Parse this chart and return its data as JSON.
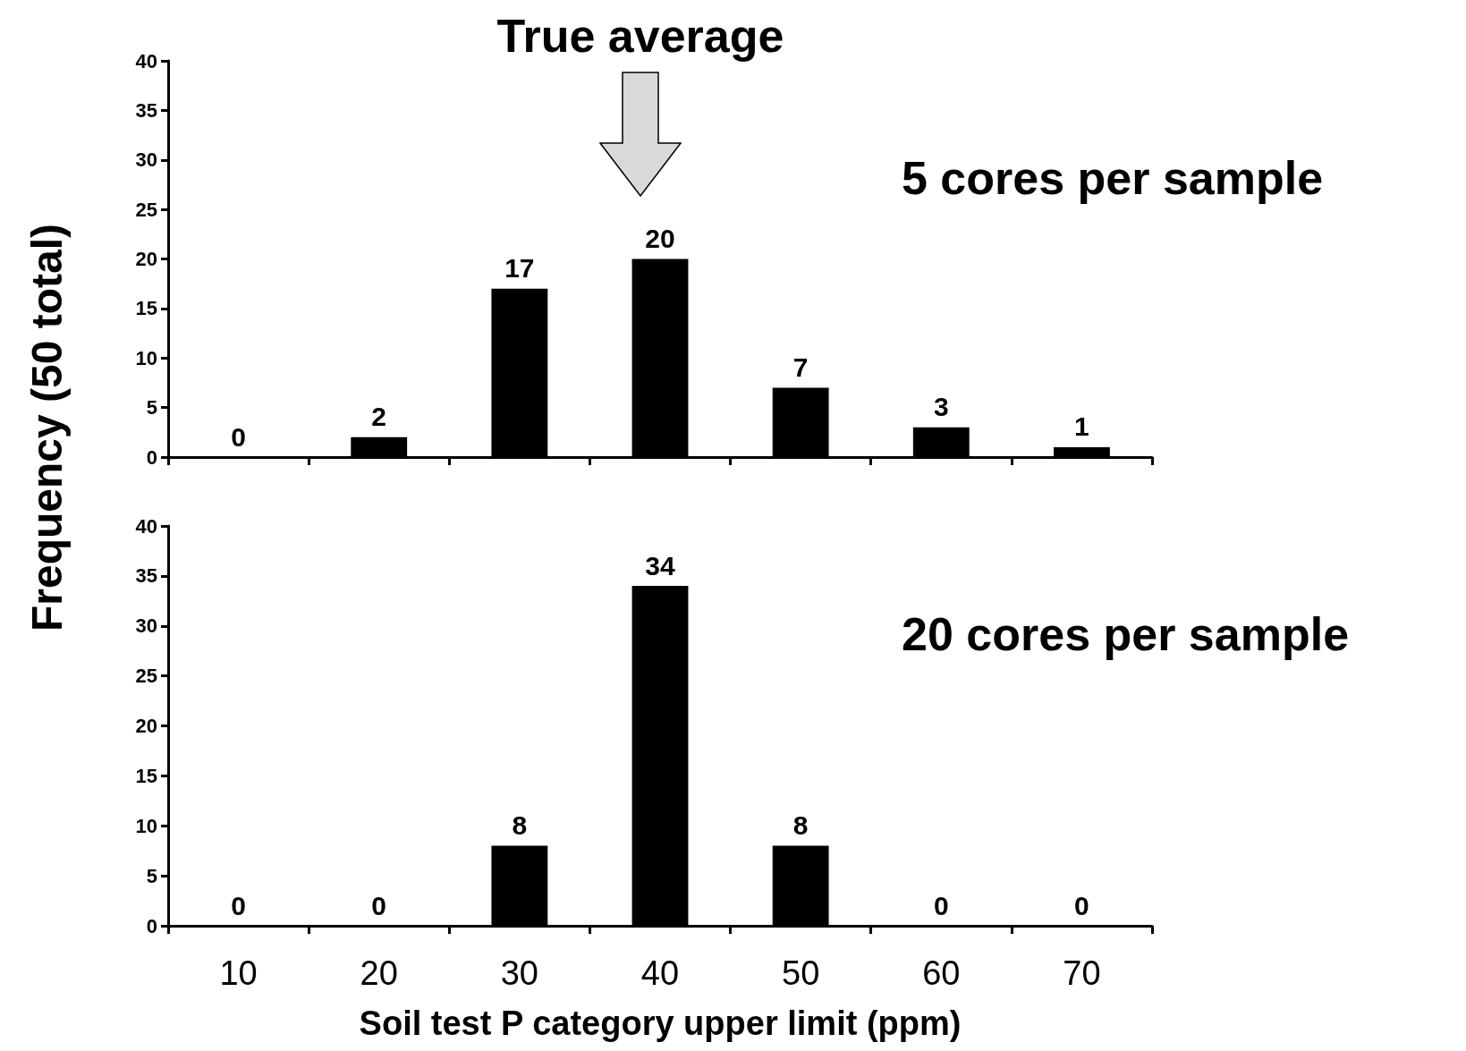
{
  "chart_data": [
    {
      "type": "bar",
      "ylabel": "Frequency (50 total)",
      "categories": [
        "10",
        "20",
        "30",
        "40",
        "50",
        "60",
        "70"
      ],
      "values": [
        0,
        2,
        17,
        20,
        7,
        3,
        1
      ],
      "color": "#000000",
      "ylim": [
        0,
        40
      ],
      "yticks": [
        0,
        5,
        10,
        15,
        20,
        25,
        30,
        35,
        40
      ],
      "data_labels": true,
      "tick_labels": "y",
      "title": "True average",
      "annotations": [
        "5 cores per sample"
      ]
    },
    {
      "type": "bar",
      "xlabel": "Soil test P category upper limit (ppm)",
      "categories": [
        "10",
        "20",
        "30",
        "40",
        "50",
        "60",
        "70"
      ],
      "values": [
        0,
        0,
        8,
        34,
        8,
        0,
        0
      ],
      "color": "#000000",
      "ylim": [
        0,
        40
      ],
      "yticks": [
        0,
        5,
        10,
        15,
        20,
        25,
        30,
        35,
        40
      ],
      "data_labels": true,
      "annotations": [
        "20 cores per sample"
      ]
    }
  ]
}
